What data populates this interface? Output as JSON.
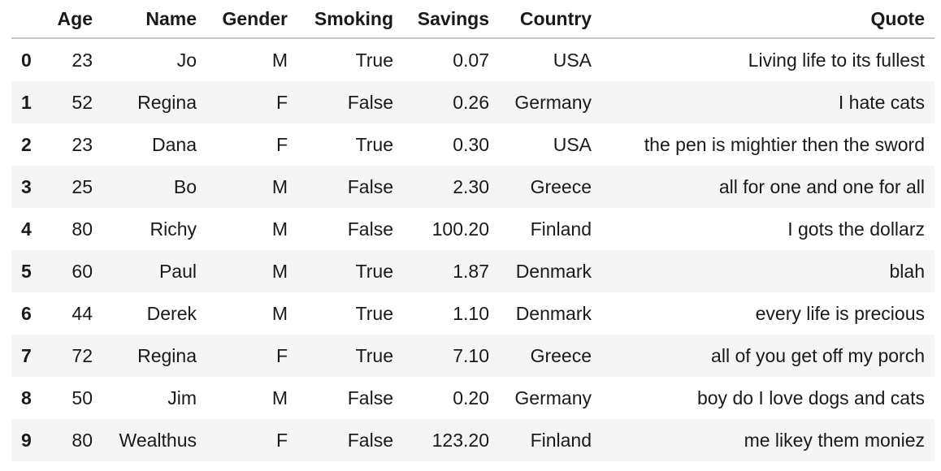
{
  "table": {
    "index_header": "",
    "columns": [
      "Age",
      "Name",
      "Gender",
      "Smoking",
      "Savings",
      "Country",
      "Quote"
    ],
    "rows": [
      {
        "index": "0",
        "cells": [
          "23",
          "Jo",
          "M",
          "True",
          "0.07",
          "USA",
          "Living life to its fullest"
        ]
      },
      {
        "index": "1",
        "cells": [
          "52",
          "Regina",
          "F",
          "False",
          "0.26",
          "Germany",
          "I hate cats"
        ]
      },
      {
        "index": "2",
        "cells": [
          "23",
          "Dana",
          "F",
          "True",
          "0.30",
          "USA",
          "the pen is mightier then the sword"
        ]
      },
      {
        "index": "3",
        "cells": [
          "25",
          "Bo",
          "M",
          "False",
          "2.30",
          "Greece",
          "all for one and one for all"
        ]
      },
      {
        "index": "4",
        "cells": [
          "80",
          "Richy",
          "M",
          "False",
          "100.20",
          "Finland",
          "I gots the dollarz"
        ]
      },
      {
        "index": "5",
        "cells": [
          "60",
          "Paul",
          "M",
          "True",
          "1.87",
          "Denmark",
          "blah"
        ]
      },
      {
        "index": "6",
        "cells": [
          "44",
          "Derek",
          "M",
          "True",
          "1.10",
          "Denmark",
          "every life is precious"
        ]
      },
      {
        "index": "7",
        "cells": [
          "72",
          "Regina",
          "F",
          "True",
          "7.10",
          "Greece",
          "all of you get off my porch"
        ]
      },
      {
        "index": "8",
        "cells": [
          "50",
          "Jim",
          "M",
          "False",
          "0.20",
          "Germany",
          "boy do I love dogs and cats"
        ]
      },
      {
        "index": "9",
        "cells": [
          "80",
          "Wealthus",
          "F",
          "False",
          "123.20",
          "Finland",
          "me likey them moniez"
        ]
      }
    ]
  }
}
